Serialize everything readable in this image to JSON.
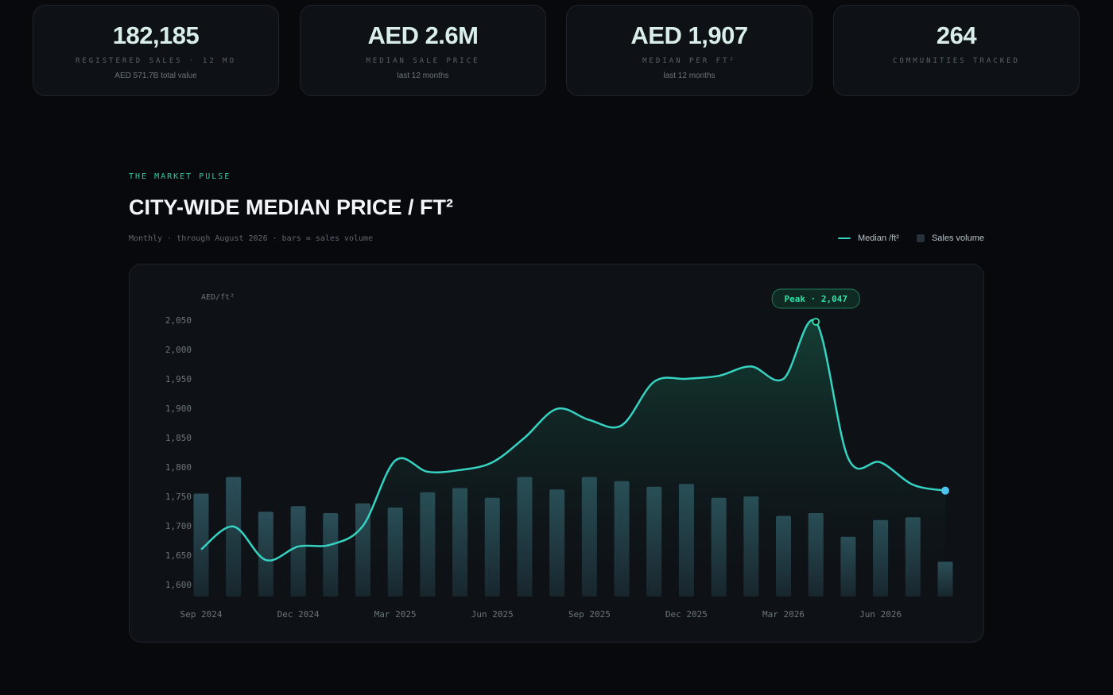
{
  "kpis": [
    {
      "value": "182,185",
      "label": "REGISTERED SALES · 12 MO",
      "sub": "AED 571.7B total value"
    },
    {
      "value": "AED 2.6M",
      "label": "MEDIAN SALE PRICE",
      "sub": "last 12 months"
    },
    {
      "value": "AED 1,907",
      "label": "MEDIAN PER FT²",
      "sub": "last 12 months"
    },
    {
      "value": "264",
      "label": "COMMUNITIES TRACKED",
      "sub": ""
    }
  ],
  "section": {
    "eyebrow": "THE MARKET PULSE",
    "title": "CITY-WIDE MEDIAN PRICE / FT²",
    "subtitle": "Monthly · through August 2026 · bars = sales volume"
  },
  "legend": {
    "line_label": "Median /ft²",
    "bar_label": "Sales volume"
  },
  "colors": {
    "line": "#36d3c2",
    "bar": "#2a4b55",
    "peak": "#2fe0a8",
    "last_point": "#4cc6ee"
  },
  "chart_data": {
    "type": "line",
    "y_unit_label": "AED/ft²",
    "ylim": [
      1580,
      2070
    ],
    "y_ticks": [
      1600,
      1650,
      1700,
      1750,
      1800,
      1850,
      1900,
      1950,
      2000,
      2050
    ],
    "y_tick_labels": [
      "1,600",
      "1,650",
      "1,700",
      "1,750",
      "1,800",
      "1,850",
      "1,900",
      "1,950",
      "2,000",
      "2,050"
    ],
    "x": [
      "Sep 2024",
      "Oct 2024",
      "Nov 2024",
      "Dec 2024",
      "Jan 2025",
      "Feb 2025",
      "Mar 2025",
      "Apr 2025",
      "May 2025",
      "Jun 2025",
      "Jul 2025",
      "Aug 2025",
      "Sep 2025",
      "Oct 2025",
      "Nov 2025",
      "Dec 2025",
      "Jan 2026",
      "Feb 2026",
      "Mar 2026",
      "Apr 2026",
      "May 2026",
      "Jun 2026",
      "Jul 2026",
      "Aug 2026"
    ],
    "x_tick_labels": [
      "Sep 2024",
      "Dec 2024",
      "Mar 2025",
      "Jun 2025",
      "Sep 2025",
      "Dec 2025",
      "Mar 2026",
      "Jun 2026"
    ],
    "x_tick_index": [
      0,
      3,
      6,
      9,
      12,
      15,
      18,
      21
    ],
    "series": [
      {
        "name": "Median /ft²",
        "kind": "line",
        "values": [
          1660,
          1699,
          1642,
          1665,
          1668,
          1700,
          1811,
          1792,
          1795,
          1808,
          1850,
          1899,
          1880,
          1871,
          1945,
          1950,
          1955,
          1971,
          1950,
          2047,
          1815,
          1808,
          1770,
          1760
        ]
      },
      {
        "name": "Sales volume",
        "kind": "bar",
        "values": [
          0.74,
          0.86,
          0.61,
          0.65,
          0.6,
          0.67,
          0.64,
          0.75,
          0.78,
          0.71,
          0.86,
          0.77,
          0.86,
          0.83,
          0.79,
          0.81,
          0.71,
          0.72,
          0.58,
          0.6,
          0.43,
          0.55,
          0.57,
          0.25
        ]
      }
    ],
    "peak": {
      "label": "Peak · 2,047",
      "index": 19,
      "value": 2047
    },
    "grid": false
  }
}
